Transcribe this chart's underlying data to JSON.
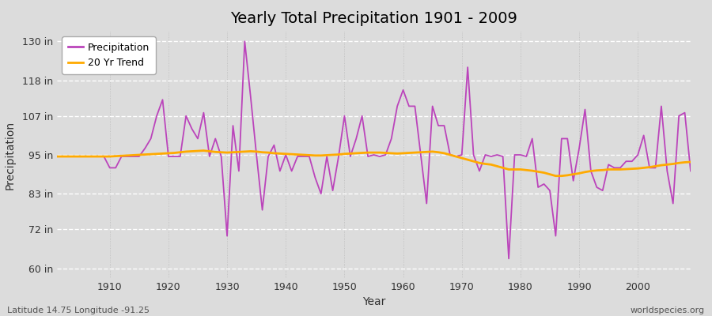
{
  "title": "Yearly Total Precipitation 1901 - 2009",
  "xlabel": "Year",
  "ylabel": "Precipitation",
  "lat_lon_label": "Latitude 14.75 Longitude -91.25",
  "watermark": "worldspecies.org",
  "line_color": "#bb44bb",
  "trend_color": "#ffaa00",
  "bg_color": "#dcdcdc",
  "plot_bg_color": "#dcdcdc",
  "ytick_labels": [
    "60 in",
    "72 in",
    "83 in",
    "95 in",
    "107 in",
    "118 in",
    "130 in"
  ],
  "ytick_values": [
    60,
    72,
    83,
    95,
    107,
    118,
    130
  ],
  "ylim": [
    57,
    133
  ],
  "xlim": [
    1901,
    2009
  ],
  "xticks": [
    1910,
    1920,
    1930,
    1940,
    1950,
    1960,
    1970,
    1980,
    1990,
    2000
  ],
  "years": [
    1901,
    1902,
    1903,
    1904,
    1905,
    1906,
    1907,
    1908,
    1909,
    1910,
    1911,
    1912,
    1913,
    1914,
    1915,
    1916,
    1917,
    1918,
    1919,
    1920,
    1921,
    1922,
    1923,
    1924,
    1925,
    1926,
    1927,
    1928,
    1929,
    1930,
    1931,
    1932,
    1933,
    1934,
    1935,
    1936,
    1937,
    1938,
    1939,
    1940,
    1941,
    1942,
    1943,
    1944,
    1945,
    1946,
    1947,
    1948,
    1949,
    1950,
    1951,
    1952,
    1953,
    1954,
    1955,
    1956,
    1957,
    1958,
    1959,
    1960,
    1961,
    1962,
    1963,
    1964,
    1965,
    1966,
    1967,
    1968,
    1969,
    1970,
    1971,
    1972,
    1973,
    1974,
    1975,
    1976,
    1977,
    1978,
    1979,
    1980,
    1981,
    1982,
    1983,
    1984,
    1985,
    1986,
    1987,
    1988,
    1989,
    1990,
    1991,
    1992,
    1993,
    1994,
    1995,
    1996,
    1997,
    1998,
    1999,
    2000,
    2001,
    2002,
    2003,
    2004,
    2005,
    2006,
    2007,
    2008,
    2009
  ],
  "precip": [
    94.5,
    94.5,
    94.5,
    94.5,
    94.5,
    94.5,
    94.5,
    94.5,
    94.5,
    91.0,
    91.0,
    94.5,
    94.5,
    94.5,
    94.5,
    97.0,
    100.0,
    107.0,
    112.0,
    94.5,
    94.5,
    94.5,
    107.0,
    103.0,
    100.0,
    108.0,
    94.5,
    100.0,
    94.5,
    70.0,
    104.0,
    90.0,
    130.0,
    113.0,
    95.0,
    78.0,
    94.5,
    98.0,
    90.0,
    95.0,
    90.0,
    94.5,
    94.5,
    94.5,
    88.0,
    83.0,
    94.5,
    84.0,
    94.5,
    107.0,
    94.5,
    100.0,
    107.0,
    94.5,
    95.0,
    94.5,
    95.0,
    100.0,
    110.0,
    115.0,
    110.0,
    110.0,
    95.0,
    80.0,
    110.0,
    104.0,
    104.0,
    95.0,
    94.5,
    95.0,
    122.0,
    95.0,
    90.0,
    95.0,
    94.5,
    95.0,
    94.5,
    63.0,
    95.0,
    95.0,
    94.5,
    100.0,
    85.0,
    86.0,
    84.0,
    70.0,
    100.0,
    100.0,
    87.0,
    97.0,
    109.0,
    90.0,
    85.0,
    84.0,
    92.0,
    91.0,
    91.0,
    93.0,
    93.0,
    95.0,
    101.0,
    91.0,
    91.0,
    110.0,
    90.0,
    80.0,
    107.0,
    108.0,
    90.0
  ],
  "trend": [
    94.5,
    94.5,
    94.5,
    94.5,
    94.5,
    94.5,
    94.5,
    94.5,
    94.5,
    94.5,
    94.6,
    94.7,
    94.8,
    94.9,
    95.0,
    95.1,
    95.2,
    95.3,
    95.4,
    95.5,
    95.6,
    95.8,
    96.0,
    96.1,
    96.2,
    96.3,
    96.1,
    95.9,
    95.8,
    95.7,
    95.8,
    95.9,
    96.0,
    96.1,
    96.0,
    95.8,
    95.7,
    95.5,
    95.4,
    95.3,
    95.2,
    95.1,
    95.0,
    94.9,
    94.8,
    94.8,
    94.9,
    95.0,
    95.1,
    95.3,
    95.4,
    95.5,
    95.6,
    95.7,
    95.7,
    95.7,
    95.6,
    95.5,
    95.4,
    95.5,
    95.6,
    95.7,
    95.8,
    95.9,
    96.0,
    95.8,
    95.5,
    95.0,
    94.5,
    94.0,
    93.5,
    93.0,
    92.5,
    92.2,
    92.0,
    91.5,
    91.0,
    90.5,
    90.5,
    90.5,
    90.3,
    90.1,
    89.8,
    89.5,
    89.0,
    88.5,
    88.5,
    88.7,
    89.0,
    89.3,
    89.7,
    90.0,
    90.2,
    90.3,
    90.5,
    90.5,
    90.5,
    90.6,
    90.7,
    90.8,
    91.0,
    91.2,
    91.5,
    91.8,
    92.0,
    92.2,
    92.5,
    92.7,
    92.8
  ],
  "title_fontsize": 14,
  "tick_fontsize": 9,
  "label_fontsize": 10,
  "annot_fontsize": 8
}
